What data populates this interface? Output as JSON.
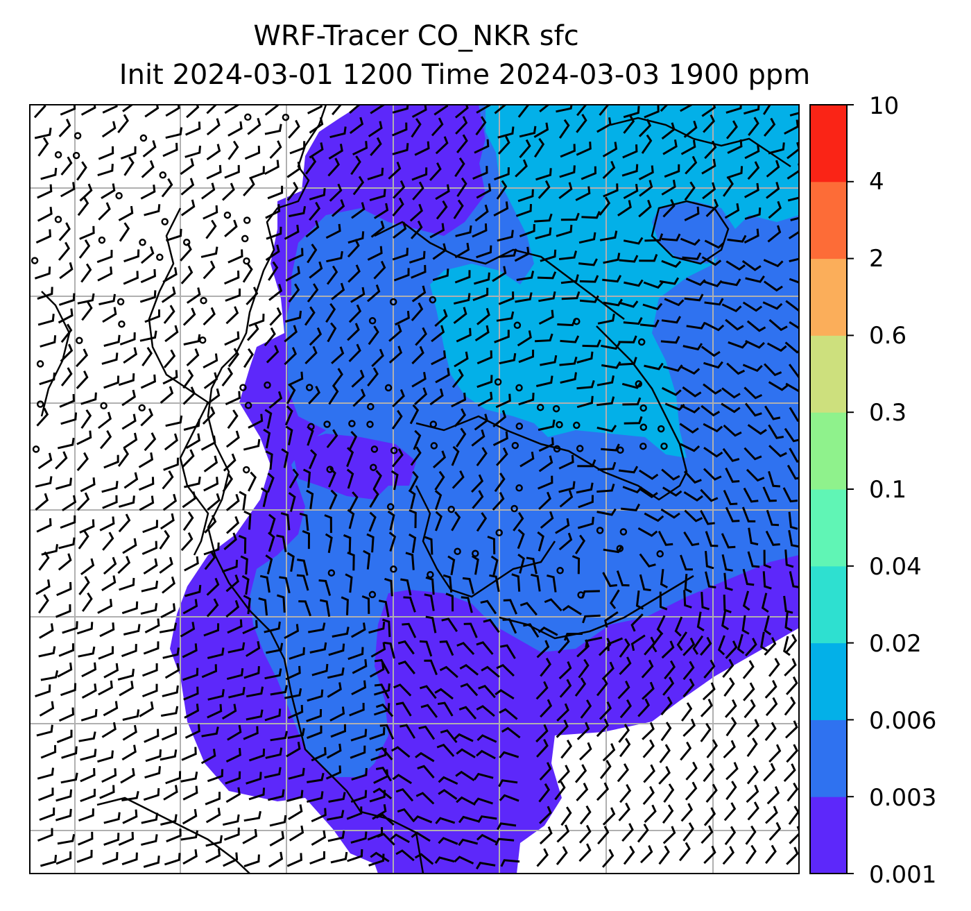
{
  "title": {
    "line1": "WRF-Tracer CO_NKR sfc",
    "line2": "Init 2024-03-01 1200 Time 2024-03-03 1900 ppm"
  },
  "colorbar": {
    "levels": [
      "0.001",
      "0.003",
      "0.006",
      "0.02",
      "0.04",
      "0.1",
      "0.3",
      "0.6",
      "2",
      "4",
      "10"
    ],
    "colors": [
      "#5d28fa",
      "#2f72f0",
      "#03b0e8",
      "#2ee0d0",
      "#60f5b5",
      "#8ff28c",
      "#cde07d",
      "#fbae5a",
      "#fd6c37",
      "#fa2416"
    ]
  },
  "map": {
    "grid": "on",
    "features": [
      "tracer-concentration-fill",
      "wind-barbs",
      "coastlines",
      "lat-lon-gridlines"
    ]
  }
}
